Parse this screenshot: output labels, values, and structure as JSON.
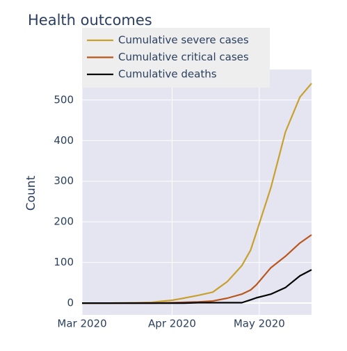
{
  "chart_data": {
    "type": "line",
    "title": "Health outcomes",
    "y_label": "Count",
    "x": [
      "2020-03-01",
      "2020-03-10",
      "2020-03-20",
      "2020-03-25",
      "2020-04-01",
      "2020-04-05",
      "2020-04-10",
      "2020-04-15",
      "2020-04-20",
      "2020-04-25",
      "2020-04-28",
      "2020-04-30",
      "2020-05-05",
      "2020-05-10",
      "2020-05-15",
      "2020-05-19"
    ],
    "series": [
      {
        "name": "Cumulative severe cases",
        "color": "#c8a02c",
        "values": [
          0,
          0,
          1,
          2,
          7,
          12,
          19,
          27,
          53,
          92,
          130,
          173,
          284,
          421,
          507,
          541
        ]
      },
      {
        "name": "Cumulative critical cases",
        "color": "#b8561c",
        "values": [
          0,
          0,
          0,
          0,
          1,
          2,
          3,
          5,
          12,
          22,
          32,
          45,
          87,
          115,
          148,
          168
        ]
      },
      {
        "name": "Cumulative deaths",
        "color": "#000000",
        "values": [
          0,
          0,
          0,
          0,
          0,
          0,
          1,
          1,
          1,
          1,
          8,
          13,
          22,
          38,
          67,
          82
        ]
      }
    ],
    "xlim": [
      "2020-03-01",
      "2020-05-19"
    ],
    "xticks": [
      {
        "value": "2020-03-01",
        "label": "Mar 2020"
      },
      {
        "value": "2020-04-01",
        "label": "Apr 2020"
      },
      {
        "value": "2020-05-01",
        "label": "May 2020"
      }
    ],
    "ylim": [
      -29,
      575
    ],
    "yticks": [
      0,
      100,
      200,
      300,
      400,
      500
    ],
    "grid": true,
    "legend": "top-left"
  }
}
